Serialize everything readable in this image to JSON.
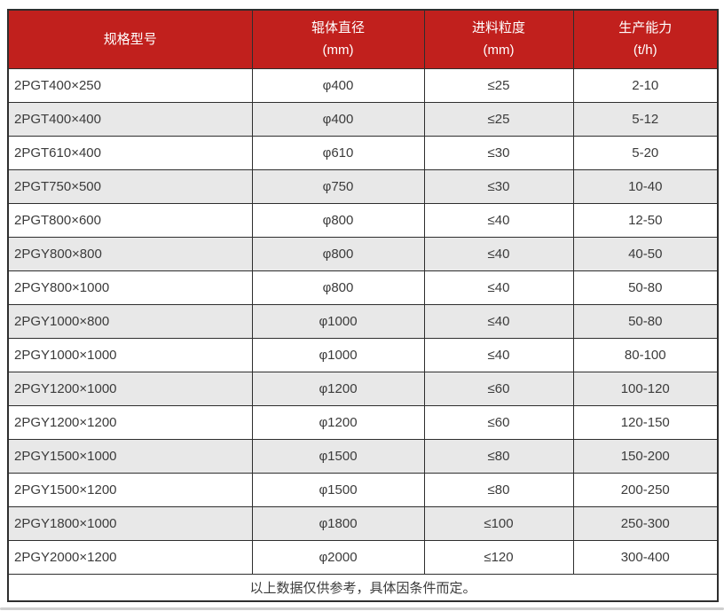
{
  "table": {
    "headers": [
      {
        "line1": "规格型号",
        "line2": ""
      },
      {
        "line1": "辊体直径",
        "line2": "(mm)"
      },
      {
        "line1": "进料粒度",
        "line2": "(mm)"
      },
      {
        "line1": "生产能力",
        "line2": "(t/h)"
      }
    ],
    "rows": [
      [
        "2PGT400×250",
        "φ400",
        "≤25",
        "2-10"
      ],
      [
        "2PGT400×400",
        "φ400",
        "≤25",
        "5-12"
      ],
      [
        "2PGT610×400",
        "φ610",
        "≤30",
        "5-20"
      ],
      [
        "2PGT750×500",
        "φ750",
        "≤30",
        "10-40"
      ],
      [
        "2PGT800×600",
        "φ800",
        "≤40",
        "12-50"
      ],
      [
        "2PGY800×800",
        "φ800",
        "≤40",
        "40-50"
      ],
      [
        "2PGY800×1000",
        "φ800",
        "≤40",
        "50-80"
      ],
      [
        "2PGY1000×800",
        "φ1000",
        "≤40",
        "50-80"
      ],
      [
        "2PGY1000×1000",
        "φ1000",
        "≤40",
        "80-100"
      ],
      [
        "2PGY1200×1000",
        "φ1200",
        "≤60",
        "100-120"
      ],
      [
        "2PGY1200×1200",
        "φ1200",
        "≤60",
        "120-150"
      ],
      [
        "2PGY1500×1000",
        "φ1500",
        "≤80",
        "150-200"
      ],
      [
        "2PGY1500×1200",
        "φ1500",
        "≤80",
        "200-250"
      ],
      [
        "2PGY1800×1000",
        "φ1800",
        "≤100",
        "250-300"
      ],
      [
        "2PGY2000×1200",
        "φ2000",
        "≤120",
        "300-400"
      ]
    ],
    "footer": "以上数据仅供参考，具体因条件而定。"
  },
  "colors": {
    "header_bg": "#c1201d",
    "header_text": "#ffffff",
    "row_bg": "#ffffff",
    "row_alt_bg": "#e8e8e8",
    "border": "#2e2e2e",
    "text": "#3b3b3b"
  }
}
